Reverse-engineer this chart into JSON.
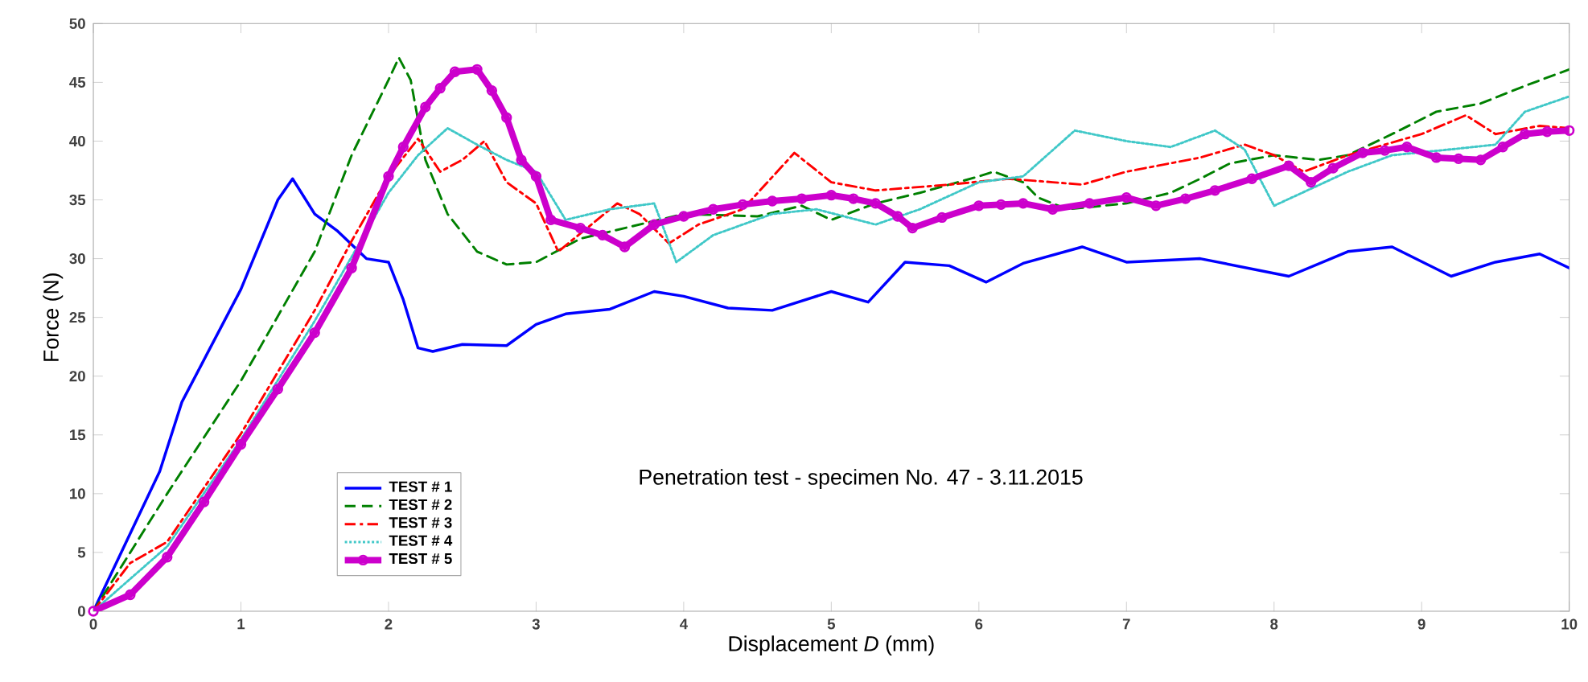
{
  "chart_data": {
    "type": "line",
    "xlabel": "Displacement *D* (mm)",
    "ylabel": "Force (N)",
    "annotations": [
      "Penetration test - specimen No. 47 - 3.11.2015"
    ],
    "xlim": [
      0,
      10
    ],
    "ylim": [
      0,
      50
    ],
    "xticks": [
      0,
      1,
      2,
      3,
      4,
      5,
      6,
      7,
      8,
      9,
      10
    ],
    "yticks": [
      0,
      5,
      10,
      15,
      20,
      25,
      30,
      35,
      40,
      45,
      50
    ],
    "grid": false,
    "legend": "bottom left",
    "series": [
      {
        "name": "TEST # 1",
        "color": "#0000ff",
        "line_style": "solid",
        "marker": "none",
        "x": [
          0,
          0.45,
          0.6,
          1.0,
          1.25,
          1.35,
          1.5,
          1.65,
          1.85,
          2.0,
          2.1,
          2.2,
          2.3,
          2.5,
          2.8,
          3.0,
          3.2,
          3.5,
          3.8,
          4.0,
          4.3,
          4.6,
          5.0,
          5.25,
          5.5,
          5.8,
          6.05,
          6.3,
          6.7,
          7.0,
          7.5,
          8.1,
          8.5,
          8.8,
          9.2,
          9.5,
          9.8,
          10.0
        ],
        "values": [
          0,
          11.9,
          17.8,
          27.4,
          35,
          36.8,
          33.8,
          32.4,
          30,
          29.7,
          26.5,
          22.4,
          22.1,
          22.7,
          22.6,
          24.4,
          25.3,
          25.7,
          27.2,
          26.8,
          25.8,
          25.6,
          27.2,
          26.3,
          29.7,
          29.4,
          28.0,
          29.6,
          31.0,
          29.7,
          30,
          28.5,
          30.6,
          31,
          28.5,
          29.7,
          30.4,
          29.2
        ]
      },
      {
        "name": "TEST # 2",
        "color": "#008000",
        "line_style": "dashed",
        "marker": "none",
        "x": [
          0,
          0.5,
          1.0,
          1.5,
          1.75,
          2.0,
          2.07,
          2.15,
          2.25,
          2.4,
          2.6,
          2.8,
          3.0,
          3.3,
          3.6,
          4.0,
          4.5,
          4.8,
          5.0,
          5.3,
          5.6,
          6.0,
          6.1,
          6.3,
          6.4,
          6.6,
          7.0,
          7.3,
          7.5,
          7.7,
          8.0,
          8.3,
          8.5,
          8.8,
          9.1,
          9.4,
          9.7,
          10.0
        ],
        "values": [
          0,
          10,
          19.6,
          30.6,
          38.8,
          45.2,
          47.1,
          45.2,
          38.4,
          33.8,
          30.6,
          29.5,
          29.7,
          31.7,
          32.6,
          33.8,
          33.6,
          34.5,
          33.3,
          34.7,
          35.6,
          37,
          37.4,
          36.5,
          35.2,
          34.2,
          34.7,
          35.6,
          36.8,
          38.1,
          38.8,
          38.4,
          38.8,
          40.6,
          42.5,
          43.2,
          44.7,
          46.1
        ]
      },
      {
        "name": "TEST # 3",
        "color": "#ff0000",
        "line_style": "dashdot",
        "marker": "none",
        "x": [
          0,
          0.25,
          0.5,
          1.0,
          1.5,
          1.75,
          2.0,
          2.2,
          2.35,
          2.5,
          2.65,
          2.8,
          3.0,
          3.15,
          3.55,
          3.7,
          3.9,
          4.1,
          4.4,
          4.75,
          5.0,
          5.3,
          5.8,
          6.2,
          6.5,
          6.7,
          7.0,
          7.5,
          7.8,
          8.0,
          8.2,
          8.5,
          9.0,
          9.3,
          9.5,
          9.8,
          10.0
        ],
        "values": [
          0,
          4.1,
          5.9,
          15.1,
          25.6,
          31.5,
          37,
          40.2,
          37.4,
          38.4,
          40,
          36.5,
          34.7,
          30.6,
          34.7,
          33.8,
          31.3,
          32.9,
          34.2,
          39,
          36.5,
          35.8,
          36.3,
          36.8,
          36.5,
          36.3,
          37.4,
          38.6,
          39.7,
          38.8,
          37.4,
          38.8,
          40.6,
          42.2,
          40.6,
          41.3,
          41.1
        ]
      },
      {
        "name": "TEST # 4",
        "color": "#40c8c8",
        "line_style": "dotted",
        "marker": "none",
        "x": [
          0,
          0.5,
          1.0,
          1.5,
          2.0,
          2.2,
          2.4,
          2.6,
          2.8,
          3.0,
          3.2,
          3.5,
          3.8,
          3.95,
          4.2,
          4.6,
          4.9,
          5.3,
          5.6,
          6.0,
          6.3,
          6.65,
          7.0,
          7.3,
          7.6,
          7.8,
          8.0,
          8.5,
          8.8,
          9.2,
          9.5,
          9.7,
          10.0
        ],
        "values": [
          0,
          5.5,
          14.6,
          24.7,
          35.6,
          38.8,
          41.1,
          39.7,
          38.4,
          37.4,
          33.3,
          34.2,
          34.7,
          29.7,
          32,
          33.8,
          34.2,
          32.9,
          34.2,
          36.5,
          37,
          40.9,
          40,
          39.5,
          40.9,
          39.3,
          34.5,
          37.4,
          38.8,
          39.3,
          39.7,
          42.5,
          43.8
        ]
      },
      {
        "name": "TEST # 5",
        "color": "#cc00cc",
        "line_style": "solid",
        "marker": "circle",
        "x": [
          0,
          0.25,
          0.5,
          0.75,
          1.0,
          1.25,
          1.5,
          1.75,
          2.0,
          2.1,
          2.25,
          2.35,
          2.45,
          2.6,
          2.7,
          2.8,
          2.9,
          3.0,
          3.1,
          3.3,
          3.45,
          3.6,
          3.8,
          4.0,
          4.2,
          4.4,
          4.6,
          4.8,
          5.0,
          5.15,
          5.3,
          5.45,
          5.55,
          5.75,
          6.0,
          6.15,
          6.3,
          6.5,
          6.75,
          7.0,
          7.2,
          7.4,
          7.6,
          7.85,
          8.1,
          8.25,
          8.4,
          8.6,
          8.75,
          8.9,
          9.1,
          9.25,
          9.4,
          9.55,
          9.7,
          9.85,
          10.0
        ],
        "values": [
          0,
          1.4,
          4.6,
          9.3,
          14.2,
          18.9,
          23.7,
          29.2,
          37,
          39.5,
          42.9,
          44.5,
          45.9,
          46.1,
          44.3,
          42,
          38.4,
          37,
          33.3,
          32.6,
          32,
          31,
          32.9,
          33.6,
          34.2,
          34.6,
          34.9,
          35.1,
          35.4,
          35.1,
          34.7,
          33.6,
          32.6,
          33.5,
          34.5,
          34.6,
          34.7,
          34.2,
          34.7,
          35.2,
          34.5,
          35.1,
          35.8,
          36.8,
          37.9,
          36.5,
          37.7,
          39,
          39.2,
          39.5,
          38.6,
          38.5,
          38.4,
          39.5,
          40.6,
          40.8,
          40.9
        ]
      }
    ]
  }
}
